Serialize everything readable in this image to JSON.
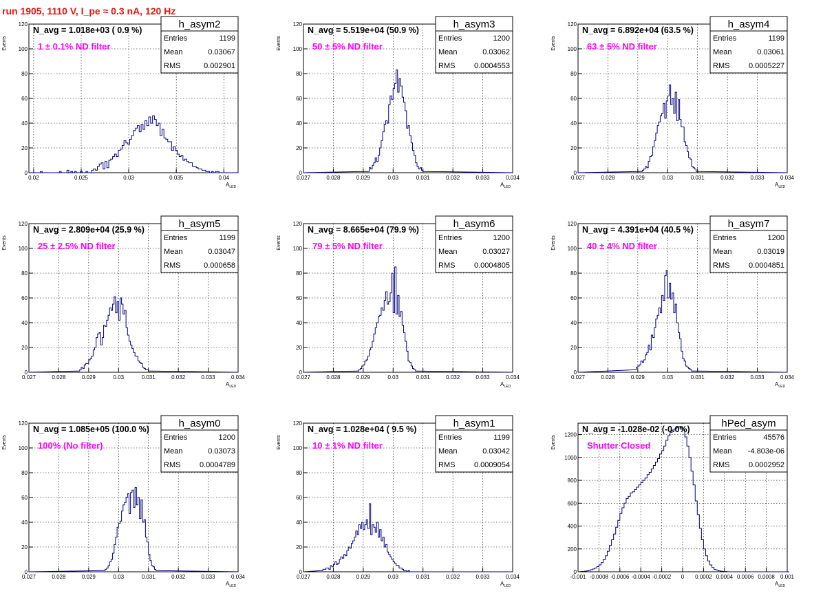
{
  "header": {
    "title": "run 1905,  1110 V, I_pe ≈ 0.3 nA, 120 Hz"
  },
  "chart_data": [
    {
      "type": "histogram",
      "name": "h_asym2",
      "navg": "N_avg = 1.018e+03 ( 0.9 %)",
      "filter": "1 ± 0.1% ND filter",
      "stats": {
        "entries": "1199",
        "mean": "0.03067",
        "rms": "0.002901"
      },
      "xlabel": "A_LED",
      "ylabel": "Events",
      "xlim": [
        0.0195,
        0.0415
      ],
      "ylim": [
        0,
        120
      ],
      "xticks": [
        "0.02",
        "0.025",
        "0.03",
        "0.035",
        "0.04"
      ],
      "yticks": [
        "0",
        "20",
        "40",
        "60",
        "80",
        "100",
        "120"
      ],
      "bin_start": 0.0195,
      "bin_width": 0.0002,
      "counts": [
        0,
        0,
        0,
        0,
        0,
        0,
        1,
        0,
        0,
        0,
        0,
        0,
        0,
        0,
        0,
        0,
        1,
        0,
        0,
        0,
        2,
        0,
        1,
        0,
        1,
        0,
        0,
        1,
        0,
        0,
        1,
        0,
        0,
        2,
        3,
        2,
        5,
        7,
        8,
        3,
        9,
        4,
        10,
        11,
        13,
        15,
        13,
        18,
        19,
        22,
        26,
        24,
        23,
        27,
        30,
        34,
        36,
        38,
        33,
        39,
        35,
        42,
        38,
        45,
        40,
        46,
        43,
        38,
        40,
        30,
        35,
        28,
        27,
        25,
        25,
        18,
        21,
        18,
        15,
        13,
        14,
        10,
        11,
        9,
        8,
        8,
        5,
        5,
        4,
        3,
        3,
        2,
        2,
        1,
        1,
        0,
        1,
        0,
        1,
        1,
        0,
        0,
        0,
        0,
        0,
        0,
        0,
        0,
        0,
        0
      ]
    },
    {
      "type": "histogram",
      "name": "h_asym3",
      "navg": "N_avg = 5.519e+04 (50.9 %)",
      "filter": "50 ± 5% ND filter",
      "stats": {
        "entries": "1200",
        "mean": "0.03062",
        "rms": "0.0004553"
      },
      "xlabel": "A_LED",
      "ylabel": "Events",
      "xlim": [
        0.027,
        0.034
      ],
      "ylim": [
        0,
        120
      ],
      "xticks": [
        "0.027",
        "0.028",
        "0.029",
        "0.03",
        "0.031",
        "0.032",
        "0.033",
        "0.034"
      ],
      "yticks": [
        "0",
        "20",
        "40",
        "60",
        "80",
        "100",
        "120"
      ],
      "bin_start": 0.0291,
      "bin_width": 5e-05,
      "counts": [
        1,
        1,
        4,
        3,
        6,
        8,
        12,
        9,
        14,
        20,
        26,
        33,
        39,
        42,
        40,
        55,
        62,
        59,
        68,
        72,
        83,
        65,
        76,
        70,
        61,
        57,
        50,
        36,
        38,
        30,
        24,
        18,
        14,
        8,
        5,
        3,
        4,
        2,
        1,
        1
      ]
    },
    {
      "type": "histogram",
      "name": "h_asym4",
      "navg": "N_avg = 6.892e+04 (63.5 %)",
      "filter": "63 ± 5% ND filter",
      "stats": {
        "entries": "1199",
        "mean": "0.03061",
        "rms": "0.0005227"
      },
      "xlabel": "A_LED",
      "ylabel": "Events",
      "xlim": [
        0.027,
        0.034
      ],
      "ylim": [
        0,
        120
      ],
      "xticks": [
        "0.027",
        "0.028",
        "0.029",
        "0.03",
        "0.031",
        "0.032",
        "0.033",
        "0.034"
      ],
      "yticks": [
        "0",
        "20",
        "40",
        "60",
        "80",
        "100",
        "120"
      ],
      "bin_start": 0.0291,
      "bin_width": 5e-05,
      "counts": [
        1,
        2,
        3,
        5,
        4,
        9,
        13,
        14,
        21,
        26,
        32,
        38,
        41,
        46,
        48,
        56,
        44,
        58,
        62,
        71,
        55,
        60,
        48,
        65,
        42,
        59,
        43,
        37,
        37,
        25,
        22,
        17,
        12,
        11,
        5,
        4,
        3,
        1,
        1,
        1
      ]
    },
    {
      "type": "histogram",
      "name": "h_asym5",
      "navg": "N_avg = 2.809e+04 (25.9 %)",
      "filter": "25 ± 2.5% ND filter",
      "stats": {
        "entries": "1199",
        "mean": "0.03047",
        "rms": "0.000658"
      },
      "xlabel": "A_LED",
      "ylabel": "Events",
      "xlim": [
        0.027,
        0.034
      ],
      "ylim": [
        0,
        120
      ],
      "xticks": [
        "0.027",
        "0.028",
        "0.029",
        "0.03",
        "0.031",
        "0.032",
        "0.033",
        "0.034"
      ],
      "yticks": [
        "0",
        "20",
        "40",
        "60",
        "80",
        "100",
        "120"
      ],
      "bin_start": 0.0286,
      "bin_width": 5e-05,
      "counts": [
        1,
        1,
        2,
        4,
        3,
        6,
        7,
        7,
        10,
        11,
        13,
        18,
        20,
        28,
        31,
        32,
        22,
        28,
        38,
        37,
        42,
        46,
        52,
        50,
        55,
        61,
        48,
        57,
        42,
        60,
        55,
        47,
        50,
        36,
        30,
        25,
        22,
        19,
        16,
        13,
        13,
        9,
        8,
        7,
        4,
        3,
        2,
        2,
        1,
        1
      ]
    },
    {
      "type": "histogram",
      "name": "h_asym6",
      "navg": "N_avg = 8.665e+04 (79.9 %)",
      "filter": "79 ± 5% ND filter",
      "stats": {
        "entries": "1200",
        "mean": "0.03027",
        "rms": "0.0004805"
      },
      "xlabel": "A_LED",
      "ylabel": "Events",
      "xlim": [
        0.027,
        0.034
      ],
      "ylim": [
        0,
        120
      ],
      "xticks": [
        "0.027",
        "0.028",
        "0.029",
        "0.03",
        "0.031",
        "0.032",
        "0.033",
        "0.034"
      ],
      "yticks": [
        "0",
        "20",
        "40",
        "60",
        "80",
        "100",
        "120"
      ],
      "bin_start": 0.0288,
      "bin_width": 5e-05,
      "counts": [
        1,
        2,
        3,
        5,
        6,
        9,
        10,
        13,
        18,
        20,
        25,
        31,
        36,
        40,
        45,
        46,
        52,
        50,
        58,
        65,
        55,
        57,
        64,
        80,
        48,
        85,
        47,
        62,
        45,
        49,
        38,
        32,
        25,
        17,
        9,
        8,
        5,
        3,
        2,
        1
      ]
    },
    {
      "type": "histogram",
      "name": "h_asym7",
      "navg": "N_avg = 4.391e+04 (40.5 %)",
      "filter": "40 ± 4% ND filter",
      "stats": {
        "entries": "1200",
        "mean": "0.03019",
        "rms": "0.0004851"
      },
      "xlabel": "A_LED",
      "ylabel": "Events",
      "xlim": [
        0.027,
        0.034
      ],
      "ylim": [
        0,
        120
      ],
      "xticks": [
        "0.027",
        "0.028",
        "0.029",
        "0.03",
        "0.031",
        "0.032",
        "0.033",
        "0.034"
      ],
      "yticks": [
        "0",
        "20",
        "40",
        "60",
        "80",
        "100",
        "120"
      ],
      "bin_start": 0.0289,
      "bin_width": 5e-05,
      "counts": [
        2,
        4,
        5,
        6,
        9,
        8,
        10,
        14,
        16,
        22,
        18,
        30,
        28,
        36,
        43,
        46,
        52,
        48,
        62,
        58,
        78,
        82,
        60,
        72,
        59,
        64,
        48,
        55,
        40,
        32,
        27,
        17,
        11,
        9,
        5,
        4,
        3,
        2,
        1,
        1
      ]
    },
    {
      "type": "histogram",
      "name": "h_asym0",
      "navg": "N_avg = 1.085e+05 (100.0 %)",
      "filter": "100% (No filter)",
      "stats": {
        "entries": "1200",
        "mean": "0.03073",
        "rms": "0.0004789"
      },
      "xlabel": "A_LED",
      "ylabel": "Events",
      "xlim": [
        0.027,
        0.034
      ],
      "ylim": [
        0,
        120
      ],
      "xticks": [
        "0.027",
        "0.028",
        "0.029",
        "0.03",
        "0.031",
        "0.032",
        "0.033",
        "0.034"
      ],
      "yticks": [
        "0",
        "20",
        "40",
        "60",
        "80",
        "100",
        "120"
      ],
      "bin_start": 0.0295,
      "bin_width": 5e-05,
      "counts": [
        1,
        2,
        3,
        5,
        8,
        10,
        15,
        22,
        28,
        36,
        39,
        41,
        49,
        54,
        56,
        60,
        63,
        47,
        64,
        66,
        52,
        68,
        54,
        60,
        43,
        58,
        40,
        42,
        28,
        24,
        14,
        9,
        5,
        4,
        2,
        1
      ]
    },
    {
      "type": "histogram",
      "name": "h_asym1",
      "navg": "N_avg = 1.028e+04 ( 9.5 %)",
      "filter": "10 ± 1% ND filter",
      "stats": {
        "entries": "1199",
        "mean": "0.03042",
        "rms": "0.0009054"
      },
      "xlabel": "A_LED",
      "ylabel": "Events",
      "xlim": [
        0.027,
        0.034
      ],
      "ylim": [
        0,
        120
      ],
      "xticks": [
        "0.027",
        "0.028",
        "0.029",
        "0.03",
        "0.031",
        "0.032",
        "0.033",
        "0.034"
      ],
      "yticks": [
        "0",
        "20",
        "40",
        "60",
        "80",
        "100",
        "120"
      ],
      "bin_start": 0.0276,
      "bin_width": 5e-05,
      "counts": [
        1,
        2,
        2,
        3,
        3,
        2,
        5,
        4,
        6,
        8,
        6,
        7,
        10,
        12,
        11,
        14,
        13,
        17,
        20,
        19,
        23,
        25,
        28,
        33,
        30,
        38,
        35,
        40,
        34,
        38,
        42,
        35,
        55,
        30,
        38,
        36,
        32,
        40,
        28,
        34,
        25,
        28,
        20,
        22,
        16,
        14,
        12,
        10,
        8,
        7,
        5,
        5,
        3,
        3,
        2,
        1,
        1,
        0,
        1,
        0
      ]
    },
    {
      "type": "histogram",
      "name": "hPed_asym",
      "navg": "N_avg = -1.028e-02 (-0.0%)",
      "filter": "Shutter Closed",
      "stats": {
        "entries": "45576",
        "mean": "-4.803e-06",
        "rms": "0.0002952"
      },
      "xlabel": "A_LED",
      "ylabel": "Events",
      "xlim": [
        -0.001,
        0.001
      ],
      "ylim": [
        0,
        1300
      ],
      "xticks": [
        "-0.001",
        "-0.0008",
        "-0.0006",
        "-0.0004",
        "-0.0002",
        "0",
        "0.0002",
        "0.0004",
        "0.0006",
        "0.0008",
        "0.001"
      ],
      "yticks": [
        "0",
        "200",
        "400",
        "600",
        "800",
        "1000",
        "1200"
      ],
      "bin_start": -0.001,
      "bin_width": 2e-05,
      "counts": [
        0,
        2,
        3,
        5,
        8,
        12,
        18,
        25,
        32,
        45,
        60,
        80,
        105,
        140,
        180,
        230,
        280,
        330,
        390,
        450,
        510,
        560,
        600,
        640,
        660,
        690,
        700,
        720,
        740,
        760,
        780,
        800,
        820,
        850,
        870,
        900,
        930,
        960,
        990,
        1030,
        1060,
        1100,
        1150,
        1190,
        1220,
        1240,
        1250,
        1260,
        1270,
        1260,
        1240,
        1180,
        1100,
        1000,
        880,
        760,
        620,
        500,
        380,
        280,
        200,
        140,
        95,
        60,
        38,
        22,
        14,
        8,
        5,
        3,
        2,
        1,
        0,
        0,
        0,
        0,
        0,
        0,
        0,
        0,
        0,
        0,
        0,
        0,
        0,
        0,
        0,
        0,
        0,
        0,
        0,
        0,
        0,
        0,
        0,
        0,
        0,
        0,
        0,
        0,
        0,
        0
      ]
    }
  ]
}
